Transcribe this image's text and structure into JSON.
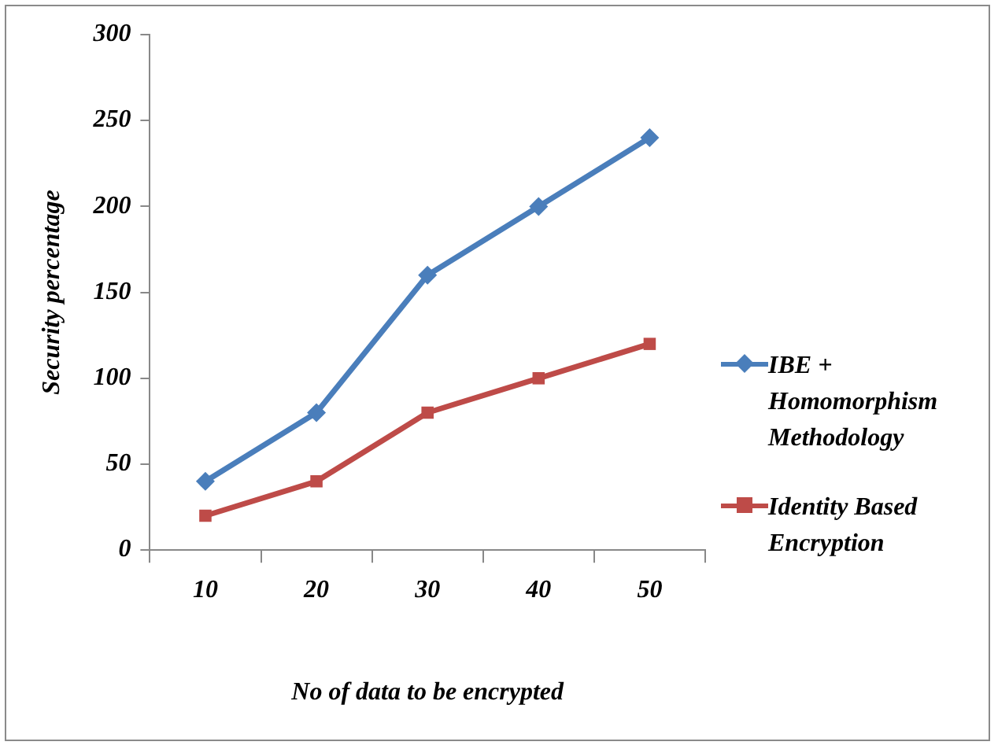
{
  "chart_data": {
    "type": "line",
    "xlabel": "No of data to be encrypted",
    "ylabel": "Security percentage",
    "categories": [
      "10",
      "20",
      "30",
      "40",
      "50"
    ],
    "ylim": [
      0,
      300
    ],
    "yticks": [
      0,
      50,
      100,
      150,
      200,
      250,
      300
    ],
    "grid": false,
    "legend": "right",
    "series": [
      {
        "name": "IBE + Homomorphism Methodology",
        "color": "#4a7ebb",
        "marker": "diamond",
        "values": [
          40,
          80,
          160,
          200,
          240
        ]
      },
      {
        "name": "Identity Based Encryption",
        "color": "#be4b48",
        "marker": "square",
        "values": [
          20,
          40,
          80,
          100,
          120
        ]
      }
    ]
  }
}
